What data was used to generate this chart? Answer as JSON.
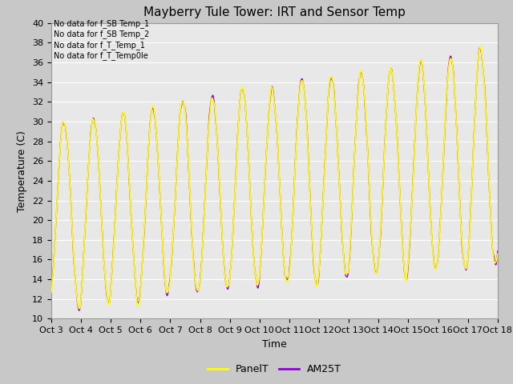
{
  "title": "Mayberry Tule Tower: IRT and Sensor Temp",
  "xlabel": "Time",
  "ylabel": "Temperature (C)",
  "ylim": [
    10,
    40
  ],
  "xlim": [
    0,
    15
  ],
  "x_tick_labels": [
    "Oct 3",
    "Oct 4",
    "Oct 5",
    "Oct 6",
    "Oct 7",
    "Oct 8",
    "Oct 9",
    "Oct 10",
    "Oct 11",
    "Oct 12",
    "Oct 13",
    "Oct 14",
    "Oct 15",
    "Oct 16",
    "Oct 17",
    "Oct 18"
  ],
  "no_data_labels": [
    "No data for f_SB Temp_1",
    "No data for f_SB Temp_2",
    "No data for f_T_Temp_1",
    "No data for f_T_Temp0le"
  ],
  "panel_color": "#ffff00",
  "am25_color": "#9400d3",
  "legend_entries": [
    "PanelT",
    "AM25T"
  ],
  "plot_bg_color": "#e8e8e8",
  "fig_bg_color": "#c8c8c8",
  "grid_color": "#ffffff",
  "title_fontsize": 11,
  "axis_fontsize": 9,
  "tick_fontsize": 8,
  "nodata_fontsize": 7
}
